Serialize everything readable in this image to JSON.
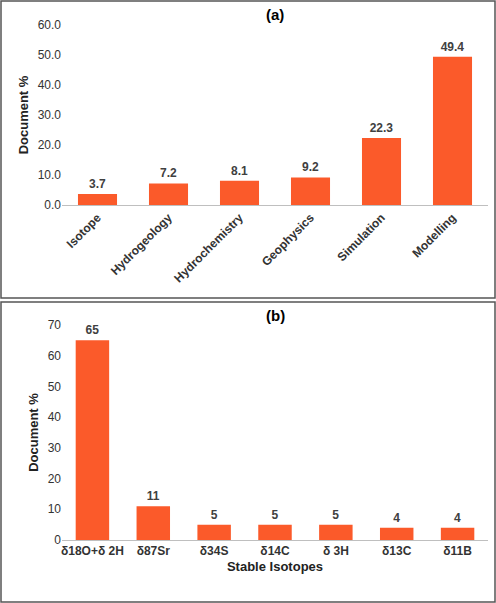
{
  "chart_data": [
    {
      "type": "bar",
      "title": "(a)",
      "categories": [
        "Isotope",
        "Hydrogeology",
        "Hydrochemistry",
        "Geophysics",
        "Simulation",
        "Modelling"
      ],
      "values": [
        3.7,
        7.2,
        8.1,
        9.2,
        22.3,
        49.4
      ],
      "color": "#fb5a2a",
      "y_label": "Document %",
      "ylim": [
        0,
        60
      ],
      "yticks": [
        {
          "value": 0,
          "label": "0.0"
        },
        {
          "value": 10,
          "label": "10.0"
        },
        {
          "value": 20,
          "label": "20.0"
        },
        {
          "value": 30,
          "label": "30.0"
        },
        {
          "value": 40,
          "label": "40.0"
        },
        {
          "value": 50,
          "label": "50.0"
        },
        {
          "value": 60,
          "label": "60.0"
        }
      ],
      "data_labels": true,
      "grid": false
    },
    {
      "type": "bar",
      "title": "(b)",
      "categories": [
        "δ18O+δ 2H",
        "δ87Sr",
        "δ34S",
        "δ14C",
        "δ 3H",
        "δ13C",
        "δ11B"
      ],
      "values": [
        65,
        11,
        5,
        5,
        5,
        4,
        4
      ],
      "color": "#fb5a2a",
      "x_label": "Stable Isotopes",
      "y_label": "Document %",
      "ylim": [
        0,
        70
      ],
      "yticks": [
        0,
        10,
        20,
        30,
        40,
        50,
        60,
        70
      ],
      "data_labels": true,
      "grid": false
    }
  ]
}
